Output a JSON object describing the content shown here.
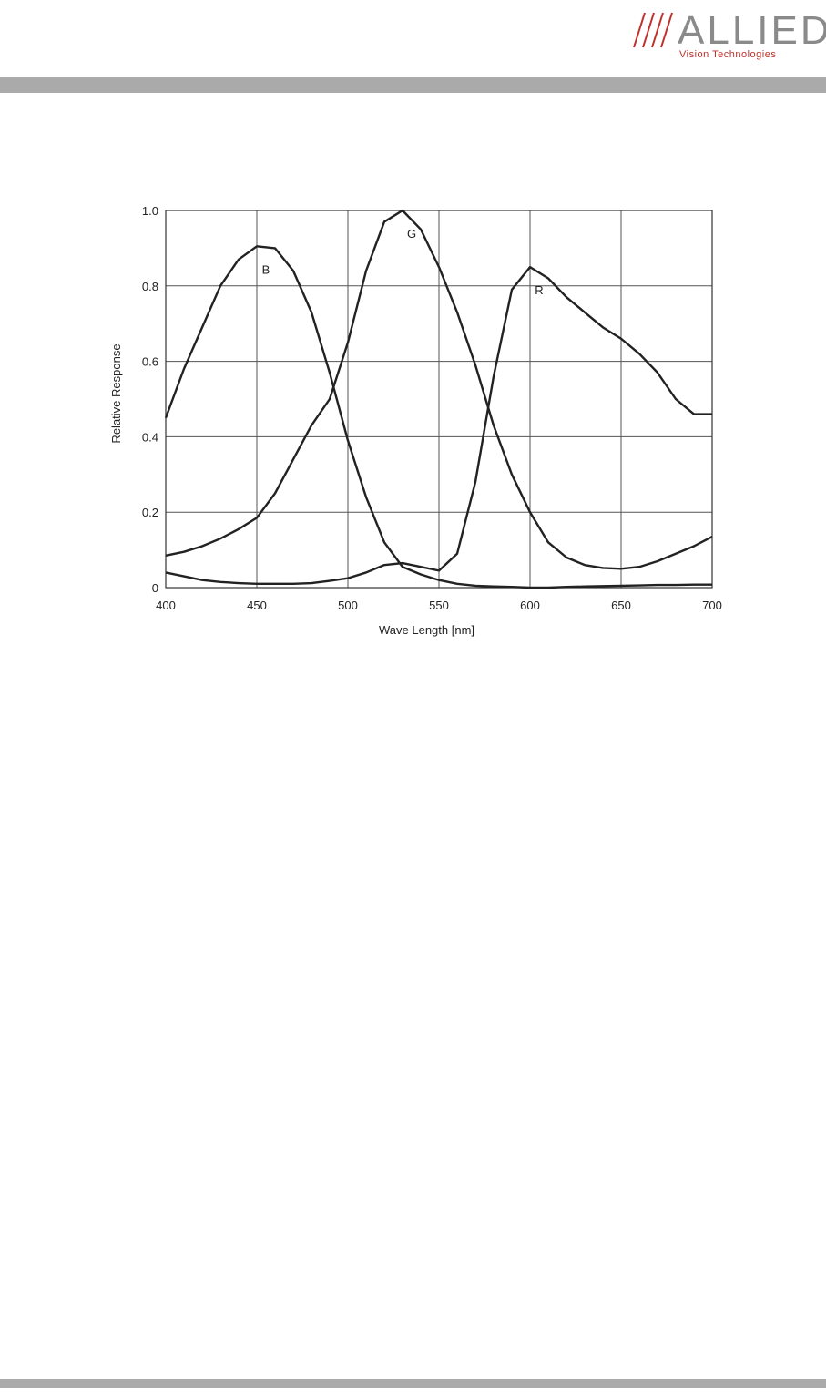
{
  "header": {
    "logo": "ALLIED",
    "tagline": "Vision Technologies"
  },
  "chart_data": {
    "type": "line",
    "xlabel": "Wave Length [nm]",
    "ylabel": "Relative Response",
    "x": [
      400,
      410,
      420,
      430,
      440,
      450,
      460,
      470,
      480,
      490,
      500,
      510,
      520,
      530,
      540,
      550,
      560,
      570,
      580,
      590,
      600,
      610,
      620,
      630,
      640,
      650,
      660,
      670,
      680,
      690,
      700
    ],
    "series": [
      {
        "name": "B",
        "color": "#222222",
        "values": [
          0.45,
          0.58,
          0.69,
          0.8,
          0.87,
          0.905,
          0.9,
          0.84,
          0.73,
          0.57,
          0.39,
          0.24,
          0.12,
          0.055,
          0.035,
          0.02,
          0.01,
          0.005,
          0.003,
          0.002,
          0,
          0,
          0.002,
          0.003,
          0.004,
          0.005,
          0.006,
          0.007,
          0.007,
          0.008,
          0.008
        ]
      },
      {
        "name": "G",
        "color": "#222222",
        "values": [
          0.085,
          0.095,
          0.11,
          0.13,
          0.155,
          0.185,
          0.25,
          0.34,
          0.43,
          0.5,
          0.65,
          0.84,
          0.97,
          1.0,
          0.95,
          0.85,
          0.73,
          0.59,
          0.43,
          0.3,
          0.2,
          0.12,
          0.08,
          0.06,
          0.052,
          0.05,
          0.055,
          0.07,
          0.09,
          0.11,
          0.135
        ]
      },
      {
        "name": "R",
        "color": "#222222",
        "values": [
          0.04,
          0.03,
          0.02,
          0.015,
          0.012,
          0.01,
          0.01,
          0.01,
          0.012,
          0.018,
          0.025,
          0.04,
          0.06,
          0.065,
          0.055,
          0.045,
          0.09,
          0.28,
          0.56,
          0.79,
          0.85,
          0.82,
          0.77,
          0.73,
          0.69,
          0.66,
          0.62,
          0.57,
          0.5,
          0.46,
          0.46
        ]
      }
    ],
    "xlim": [
      400,
      700
    ],
    "xticks": [
      400,
      450,
      500,
      550,
      600,
      650,
      700
    ],
    "ylim": [
      0,
      1
    ],
    "yticks": [
      0,
      0.2,
      0.4,
      0.6,
      0.8,
      {
        "value": 1,
        "label": "1.0"
      }
    ],
    "grid": true
  }
}
